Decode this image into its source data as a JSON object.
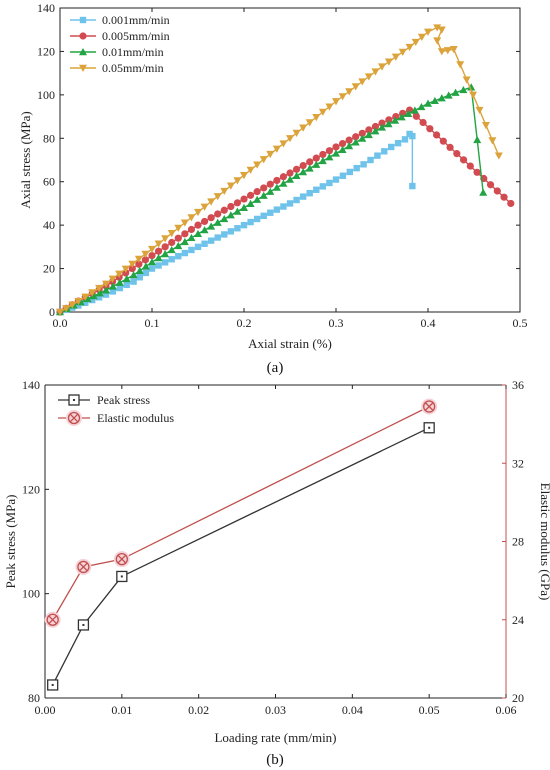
{
  "chart_data": [
    {
      "type": "line",
      "panel_label": "(a)",
      "xlabel": "Axial strain (%)",
      "ylabel": "Axial stress (MPa)",
      "xlim": [
        0,
        0.5
      ],
      "ylim": [
        0,
        140
      ],
      "xticks": [
        0,
        0.1,
        0.2,
        0.3,
        0.4,
        0.5
      ],
      "xtick_labels": [
        "0.0",
        "0.1",
        "0.2",
        "0.3",
        "0.4",
        "0.5"
      ],
      "yticks": [
        0,
        20,
        40,
        60,
        80,
        100,
        120,
        140
      ],
      "ytick_labels": [
        "0",
        "20",
        "40",
        "60",
        "80",
        "100",
        "120",
        "140"
      ],
      "legend_position": "top-left",
      "grid": false,
      "series": [
        {
          "name": "0.001mm/min",
          "color": "#6fc3ea",
          "marker": "square",
          "points": [
            [
              0,
              0
            ],
            [
              0.02,
              3
            ],
            [
              0.05,
              8
            ],
            [
              0.08,
              14
            ],
            [
              0.1,
              20
            ],
            [
              0.15,
              30
            ],
            [
              0.2,
              40
            ],
            [
              0.25,
              50
            ],
            [
              0.3,
              61
            ],
            [
              0.33,
              68
            ],
            [
              0.36,
              76
            ],
            [
              0.375,
              79.5
            ],
            [
              0.38,
              82
            ],
            [
              0.383,
              81
            ],
            [
              0.383,
              58
            ]
          ]
        },
        {
          "name": "0.005mm/min",
          "color": "#d24b50",
          "marker": "circle",
          "points": [
            [
              0,
              0
            ],
            [
              0.02,
              5
            ],
            [
              0.05,
              12
            ],
            [
              0.1,
              26
            ],
            [
              0.15,
              40
            ],
            [
              0.2,
              52
            ],
            [
              0.25,
              64
            ],
            [
              0.3,
              76
            ],
            [
              0.35,
              87
            ],
            [
              0.38,
              93
            ],
            [
              0.49,
              50
            ]
          ]
        },
        {
          "name": "0.01mm/min",
          "color": "#22a344",
          "marker": "triangle-up",
          "points": [
            [
              0,
              0
            ],
            [
              0.03,
              6
            ],
            [
              0.05,
              10
            ],
            [
              0.08,
              17
            ],
            [
              0.1,
              23
            ],
            [
              0.15,
              36
            ],
            [
              0.2,
              48
            ],
            [
              0.25,
              61
            ],
            [
              0.3,
              73
            ],
            [
              0.35,
              85
            ],
            [
              0.4,
              96
            ],
            [
              0.43,
              101
            ],
            [
              0.447,
              103.5
            ],
            [
              0.46,
              55
            ]
          ]
        },
        {
          "name": "0.05mm/min",
          "color": "#dba33a",
          "marker": "triangle-down",
          "points": [
            [
              0,
              0
            ],
            [
              0.02,
              5
            ],
            [
              0.05,
              13
            ],
            [
              0.1,
              29
            ],
            [
              0.15,
              46
            ],
            [
              0.2,
              63
            ],
            [
              0.25,
              80
            ],
            [
              0.3,
              97
            ],
            [
              0.35,
              113
            ],
            [
              0.38,
              122
            ],
            [
              0.4,
              129
            ],
            [
              0.41,
              131
            ],
            [
              0.415,
              130
            ],
            [
              0.41,
              125
            ],
            [
              0.415,
              120
            ],
            [
              0.428,
              121
            ],
            [
              0.477,
              72
            ]
          ]
        }
      ]
    },
    {
      "type": "line",
      "panel_label": "(b)",
      "xlabel": "Loading rate (mm/min)",
      "ylabel": "Peak stress (MPa)",
      "y2label": "Elastic modulus (GPa)",
      "xlim": [
        0,
        0.06
      ],
      "ylim": [
        80,
        140
      ],
      "y2lim": [
        20,
        36
      ],
      "xticks": [
        0,
        0.01,
        0.02,
        0.03,
        0.04,
        0.05,
        0.06
      ],
      "xtick_labels": [
        "0.00",
        "0.01",
        "0.02",
        "0.03",
        "0.04",
        "0.05",
        "0.06"
      ],
      "yticks": [
        80,
        100,
        120,
        140
      ],
      "ytick_labels": [
        "80",
        "100",
        "120",
        "140"
      ],
      "y2ticks": [
        20,
        24,
        28,
        32,
        36
      ],
      "y2tick_labels": [
        "20",
        "24",
        "28",
        "32",
        "36"
      ],
      "legend_position": "top-left",
      "grid": false,
      "series": [
        {
          "name": "Peak stress",
          "axis": "left",
          "color": "#333333",
          "marker": "square-dot",
          "x": [
            0.001,
            0.005,
            0.01,
            0.05
          ],
          "values": [
            82.5,
            94,
            103.3,
            131.8
          ]
        },
        {
          "name": "Elastic modulus",
          "axis": "right",
          "color": "#c0504d",
          "marker": "circle-x",
          "x": [
            0.001,
            0.005,
            0.01,
            0.05
          ],
          "values": [
            24.0,
            26.7,
            27.1,
            34.9
          ]
        }
      ]
    }
  ]
}
